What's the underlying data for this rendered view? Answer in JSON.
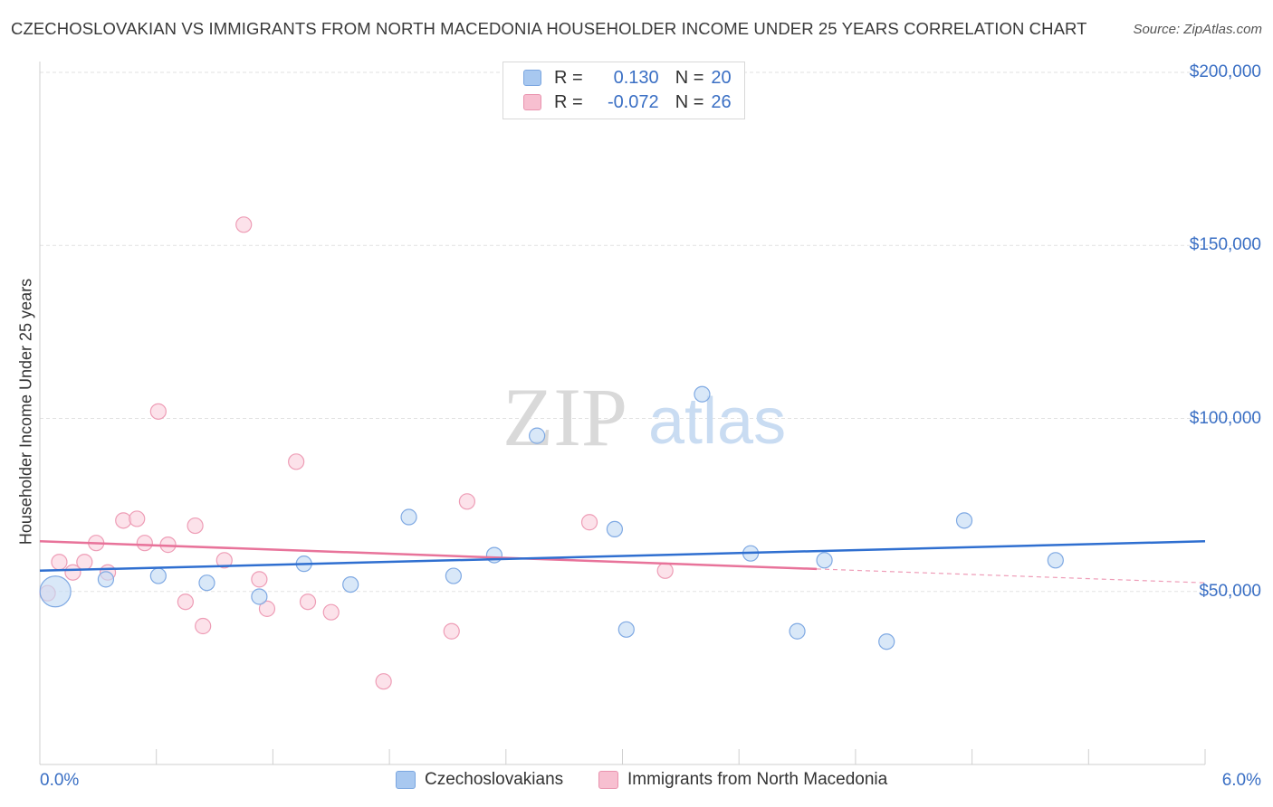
{
  "title": "CZECHOSLOVAKIAN VS IMMIGRANTS FROM NORTH MACEDONIA HOUSEHOLDER INCOME UNDER 25 YEARS CORRELATION CHART",
  "source": "Source: ZipAtlas.com",
  "watermark": {
    "zip": "ZIP",
    "atlas": "atlas"
  },
  "legend": {
    "rows": [
      {
        "r_label": "R =",
        "r_value": "0.130",
        "n_label": "N =",
        "n_value": "20",
        "color": "#a8c8f0",
        "border": "#7aa6e0"
      },
      {
        "r_label": "R =",
        "r_value": "-0.072",
        "n_label": "N =",
        "n_value": "26",
        "color": "#f7bfd0",
        "border": "#e993ae"
      }
    ]
  },
  "colors": {
    "blue_line": "#2f6fd0",
    "pink_line": "#e8739a",
    "blue_fill": "#c5dbf5",
    "blue_stroke": "#7fa9e3",
    "pink_fill": "#fad3df",
    "pink_stroke": "#ee9db6",
    "axis_text": "#3a6fc4"
  },
  "chart_data": {
    "type": "scatter",
    "title": "CZECHOSLOVAKIAN VS IMMIGRANTS FROM NORTH MACEDONIA HOUSEHOLDER INCOME UNDER 25 YEARS CORRELATION CHART",
    "xlabel": "",
    "ylabel": "Householder Income Under 25 years",
    "xlim": [
      0,
      6
    ],
    "ylim": [
      0,
      210000
    ],
    "x_tick_labels": [
      "0.0%",
      "6.0%"
    ],
    "y_ticks": [
      50000,
      100000,
      150000,
      200000
    ],
    "y_tick_labels": [
      "$50,000",
      "$100,000",
      "$150,000",
      "$200,000"
    ],
    "grid": true,
    "legend_position": "bottom",
    "series": [
      {
        "name": "Czechoslovakians",
        "color": "#7fa9e3",
        "points": [
          {
            "x": 0.08,
            "y": 50000,
            "big": true
          },
          {
            "x": 0.34,
            "y": 53500
          },
          {
            "x": 0.61,
            "y": 54500
          },
          {
            "x": 0.86,
            "y": 52500
          },
          {
            "x": 1.13,
            "y": 48500
          },
          {
            "x": 1.36,
            "y": 58000
          },
          {
            "x": 1.6,
            "y": 52000
          },
          {
            "x": 1.9,
            "y": 71500
          },
          {
            "x": 2.13,
            "y": 54500
          },
          {
            "x": 2.34,
            "y": 60500
          },
          {
            "x": 2.56,
            "y": 95000
          },
          {
            "x": 2.96,
            "y": 68000
          },
          {
            "x": 3.02,
            "y": 39000
          },
          {
            "x": 3.41,
            "y": 107000
          },
          {
            "x": 3.66,
            "y": 61000
          },
          {
            "x": 3.9,
            "y": 38500
          },
          {
            "x": 4.04,
            "y": 59000
          },
          {
            "x": 4.36,
            "y": 35500
          },
          {
            "x": 4.76,
            "y": 70500
          },
          {
            "x": 5.23,
            "y": 59000
          }
        ],
        "trend": {
          "x1": 0,
          "y1": 56000,
          "x2": 6,
          "y2": 64500
        }
      },
      {
        "name": "Immigrants from North Macedonia",
        "color": "#ee9db6",
        "points": [
          {
            "x": 0.04,
            "y": 49500
          },
          {
            "x": 0.1,
            "y": 58500
          },
          {
            "x": 0.17,
            "y": 55500
          },
          {
            "x": 0.23,
            "y": 58500
          },
          {
            "x": 0.29,
            "y": 64000
          },
          {
            "x": 0.35,
            "y": 55500
          },
          {
            "x": 0.43,
            "y": 70500
          },
          {
            "x": 0.5,
            "y": 71000
          },
          {
            "x": 0.54,
            "y": 64000
          },
          {
            "x": 0.61,
            "y": 102000
          },
          {
            "x": 0.66,
            "y": 63500
          },
          {
            "x": 0.75,
            "y": 47000
          },
          {
            "x": 0.8,
            "y": 69000
          },
          {
            "x": 0.84,
            "y": 40000
          },
          {
            "x": 0.95,
            "y": 59000
          },
          {
            "x": 1.05,
            "y": 156000
          },
          {
            "x": 1.13,
            "y": 53500
          },
          {
            "x": 1.17,
            "y": 45000
          },
          {
            "x": 1.32,
            "y": 87500
          },
          {
            "x": 1.38,
            "y": 47000
          },
          {
            "x": 1.5,
            "y": 44000
          },
          {
            "x": 1.77,
            "y": 24000
          },
          {
            "x": 2.12,
            "y": 38500
          },
          {
            "x": 2.2,
            "y": 76000
          },
          {
            "x": 2.83,
            "y": 70000
          },
          {
            "x": 3.22,
            "y": 56000
          }
        ],
        "trend": {
          "x1": 0,
          "y1": 64500,
          "x2": 4,
          "y2": 56500
        },
        "trend_dashed": {
          "x1": 4,
          "y1": 56500,
          "x2": 6,
          "y2": 52500
        }
      }
    ]
  }
}
